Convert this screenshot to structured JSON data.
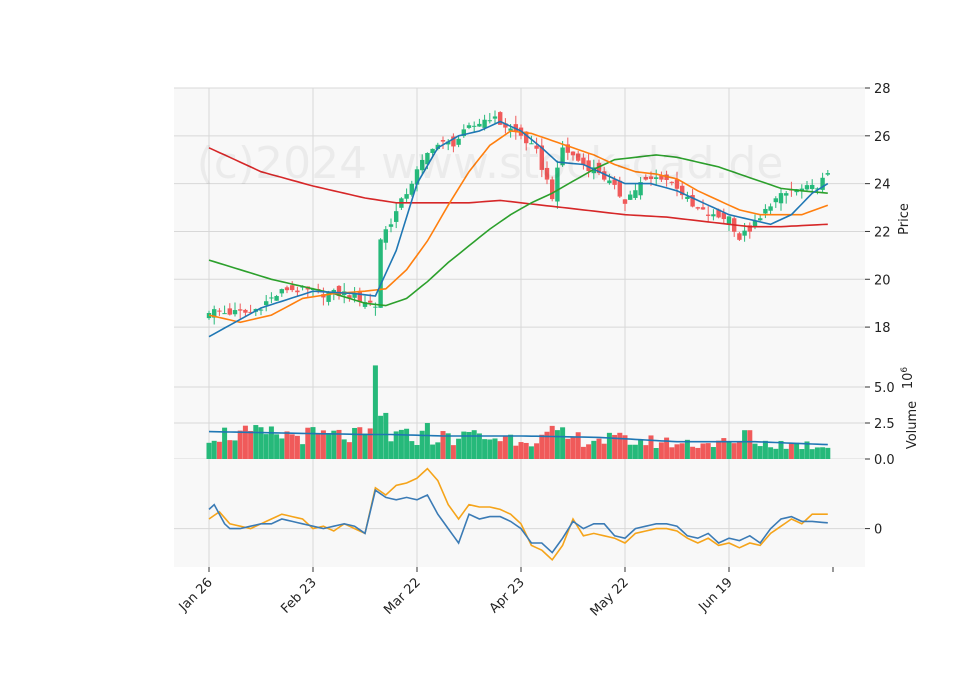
{
  "watermark": "(c)2024 www.stock-dad.de",
  "colors": {
    "up": "#26b97a",
    "down": "#f05a5a",
    "ma_fast": "#1f77b4",
    "ma_mid": "#ff7f0e",
    "ma_slow": "#2ca02c",
    "ma_long": "#d62728",
    "macd": "#3b7bb5",
    "signal": "#f5a41a",
    "volume_avg": "#1f77b4",
    "panel_bg": "#f8f8f8",
    "grid": "#d8d8d8"
  },
  "chart_data": {
    "type": "candlestick",
    "x_tick_labels": [
      "Jan 26",
      "Feb 23",
      "Mar 22",
      "Apr 23",
      "May 22",
      "Jun 19"
    ],
    "x_tick_index": [
      0,
      20,
      40,
      60,
      80,
      100
    ],
    "n_bars": 120,
    "panels": [
      {
        "name": "price",
        "ylabel": "Price",
        "ylim": [
          17.0,
          28.0
        ],
        "yticks": [
          18,
          20,
          22,
          24,
          26,
          28
        ],
        "anchors_close": [
          [
            0,
            18.7
          ],
          [
            3,
            18.6
          ],
          [
            8,
            18.6
          ],
          [
            12,
            19.2
          ],
          [
            15,
            19.6
          ],
          [
            19,
            19.5
          ],
          [
            22,
            19.4
          ],
          [
            26,
            19.4
          ],
          [
            30,
            19.1
          ],
          [
            32,
            18.9
          ],
          [
            33,
            21.7
          ],
          [
            36,
            22.8
          ],
          [
            40,
            24.5
          ],
          [
            43,
            25.6
          ],
          [
            47,
            25.7
          ],
          [
            50,
            26.3
          ],
          [
            54,
            26.8
          ],
          [
            57,
            26.4
          ],
          [
            60,
            26.0
          ],
          [
            63,
            25.3
          ],
          [
            66,
            23.5
          ],
          [
            68,
            25.5
          ],
          [
            72,
            24.8
          ],
          [
            75,
            24.5
          ],
          [
            80,
            23.3
          ],
          [
            83,
            24.0
          ],
          [
            87,
            24.3
          ],
          [
            90,
            23.9
          ],
          [
            93,
            23.0
          ],
          [
            97,
            22.6
          ],
          [
            100,
            22.6
          ],
          [
            102,
            21.7
          ],
          [
            106,
            22.5
          ],
          [
            108,
            23.2
          ],
          [
            112,
            23.7
          ],
          [
            116,
            23.8
          ],
          [
            119,
            24.3
          ]
        ],
        "ma_fast": [
          [
            0,
            17.6
          ],
          [
            10,
            18.8
          ],
          [
            20,
            19.5
          ],
          [
            28,
            19.4
          ],
          [
            32,
            19.3
          ],
          [
            36,
            21.2
          ],
          [
            40,
            24.0
          ],
          [
            44,
            25.5
          ],
          [
            48,
            26.0
          ],
          [
            52,
            26.2
          ],
          [
            56,
            26.6
          ],
          [
            60,
            26.2
          ],
          [
            64,
            25.5
          ],
          [
            67,
            24.9
          ],
          [
            72,
            24.8
          ],
          [
            76,
            24.4
          ],
          [
            80,
            24.0
          ],
          [
            85,
            24.0
          ],
          [
            90,
            23.7
          ],
          [
            95,
            23.2
          ],
          [
            100,
            22.7
          ],
          [
            104,
            22.5
          ],
          [
            108,
            22.3
          ],
          [
            112,
            22.7
          ],
          [
            116,
            23.6
          ],
          [
            119,
            24.0
          ]
        ],
        "ma_mid": [
          [
            0,
            18.5
          ],
          [
            6,
            18.2
          ],
          [
            12,
            18.5
          ],
          [
            18,
            19.2
          ],
          [
            24,
            19.4
          ],
          [
            30,
            19.5
          ],
          [
            34,
            19.6
          ],
          [
            38,
            20.4
          ],
          [
            42,
            21.6
          ],
          [
            46,
            23.1
          ],
          [
            50,
            24.5
          ],
          [
            54,
            25.6
          ],
          [
            58,
            26.2
          ],
          [
            62,
            26.1
          ],
          [
            66,
            25.8
          ],
          [
            70,
            25.5
          ],
          [
            74,
            25.2
          ],
          [
            78,
            24.8
          ],
          [
            82,
            24.5
          ],
          [
            86,
            24.4
          ],
          [
            90,
            24.2
          ],
          [
            94,
            23.7
          ],
          [
            98,
            23.3
          ],
          [
            102,
            22.9
          ],
          [
            106,
            22.7
          ],
          [
            110,
            22.7
          ],
          [
            114,
            22.7
          ],
          [
            119,
            23.1
          ]
        ],
        "ma_slow": [
          [
            0,
            20.8
          ],
          [
            6,
            20.4
          ],
          [
            12,
            20.0
          ],
          [
            18,
            19.7
          ],
          [
            24,
            19.4
          ],
          [
            30,
            19.0
          ],
          [
            34,
            18.9
          ],
          [
            38,
            19.2
          ],
          [
            42,
            19.9
          ],
          [
            46,
            20.7
          ],
          [
            50,
            21.4
          ],
          [
            54,
            22.1
          ],
          [
            58,
            22.7
          ],
          [
            62,
            23.2
          ],
          [
            66,
            23.6
          ],
          [
            70,
            24.1
          ],
          [
            74,
            24.6
          ],
          [
            78,
            25.0
          ],
          [
            82,
            25.1
          ],
          [
            86,
            25.2
          ],
          [
            90,
            25.1
          ],
          [
            94,
            24.9
          ],
          [
            98,
            24.7
          ],
          [
            102,
            24.4
          ],
          [
            106,
            24.1
          ],
          [
            110,
            23.8
          ],
          [
            114,
            23.7
          ],
          [
            119,
            23.6
          ]
        ],
        "ma_long": [
          [
            0,
            25.5
          ],
          [
            10,
            24.5
          ],
          [
            20,
            23.9
          ],
          [
            30,
            23.4
          ],
          [
            36,
            23.2
          ],
          [
            44,
            23.2
          ],
          [
            50,
            23.2
          ],
          [
            56,
            23.3
          ],
          [
            64,
            23.1
          ],
          [
            72,
            22.9
          ],
          [
            80,
            22.7
          ],
          [
            88,
            22.6
          ],
          [
            96,
            22.4
          ],
          [
            104,
            22.2
          ],
          [
            110,
            22.2
          ],
          [
            119,
            22.3
          ]
        ]
      },
      {
        "name": "volume",
        "ylabel": "Volume",
        "yunit": "10^6",
        "ylim": [
          0,
          7.5
        ],
        "yticks": [
          0.0,
          2.5,
          5.0
        ],
        "ytick_labels": [
          "0.0",
          "2.5",
          "5.0"
        ],
        "spikes": [
          [
            32,
            6.5
          ],
          [
            33,
            3.0
          ],
          [
            34,
            3.2
          ],
          [
            42,
            2.5
          ],
          [
            51,
            2.0
          ],
          [
            66,
            2.3
          ],
          [
            68,
            2.2
          ],
          [
            103,
            2.0
          ],
          [
            104,
            2.0
          ]
        ],
        "avg_level": [
          [
            0,
            1.9
          ],
          [
            30,
            1.7
          ],
          [
            35,
            1.7
          ],
          [
            45,
            1.6
          ],
          [
            60,
            1.6
          ],
          [
            75,
            1.5
          ],
          [
            90,
            1.2
          ],
          [
            105,
            1.2
          ],
          [
            119,
            1.0
          ]
        ]
      },
      {
        "name": "macd",
        "ylim": [
          -0.8,
          1.45
        ],
        "yticks": [
          0
        ],
        "ytick_labels": [
          "0"
        ],
        "macd": [
          [
            0,
            0.4
          ],
          [
            1,
            0.5
          ],
          [
            2,
            0.3
          ],
          [
            3,
            0.1
          ],
          [
            4,
            0.0
          ],
          [
            6,
            0.0
          ],
          [
            8,
            0.05
          ],
          [
            10,
            0.1
          ],
          [
            12,
            0.1
          ],
          [
            14,
            0.2
          ],
          [
            16,
            0.15
          ],
          [
            18,
            0.1
          ],
          [
            20,
            0.05
          ],
          [
            22,
            0.0
          ],
          [
            24,
            0.05
          ],
          [
            26,
            0.1
          ],
          [
            28,
            0.05
          ],
          [
            30,
            -0.1
          ],
          [
            32,
            0.8
          ],
          [
            34,
            0.65
          ],
          [
            36,
            0.6
          ],
          [
            38,
            0.65
          ],
          [
            40,
            0.6
          ],
          [
            42,
            0.7
          ],
          [
            44,
            0.3
          ],
          [
            48,
            -0.3
          ],
          [
            50,
            0.3
          ],
          [
            52,
            0.2
          ],
          [
            54,
            0.25
          ],
          [
            56,
            0.25
          ],
          [
            58,
            0.15
          ],
          [
            60,
            0.0
          ],
          [
            62,
            -0.3
          ],
          [
            64,
            -0.3
          ],
          [
            66,
            -0.5
          ],
          [
            68,
            -0.2
          ],
          [
            70,
            0.15
          ],
          [
            72,
            0.0
          ],
          [
            74,
            0.1
          ],
          [
            76,
            0.1
          ],
          [
            78,
            -0.15
          ],
          [
            80,
            -0.2
          ],
          [
            82,
            0.0
          ],
          [
            84,
            0.05
          ],
          [
            86,
            0.1
          ],
          [
            88,
            0.1
          ],
          [
            90,
            0.05
          ],
          [
            92,
            -0.15
          ],
          [
            94,
            -0.2
          ],
          [
            96,
            -0.1
          ],
          [
            98,
            -0.3
          ],
          [
            100,
            -0.2
          ],
          [
            102,
            -0.25
          ],
          [
            104,
            -0.15
          ],
          [
            106,
            -0.3
          ],
          [
            108,
            0.0
          ],
          [
            110,
            0.2
          ],
          [
            112,
            0.25
          ],
          [
            114,
            0.15
          ],
          [
            116,
            0.15
          ],
          [
            119,
            0.12
          ]
        ],
        "signal": [
          [
            0,
            0.2
          ],
          [
            2,
            0.35
          ],
          [
            4,
            0.1
          ],
          [
            6,
            0.05
          ],
          [
            8,
            0.0
          ],
          [
            10,
            0.1
          ],
          [
            12,
            0.2
          ],
          [
            14,
            0.3
          ],
          [
            16,
            0.25
          ],
          [
            18,
            0.2
          ],
          [
            20,
            0.0
          ],
          [
            22,
            0.05
          ],
          [
            24,
            -0.05
          ],
          [
            26,
            0.1
          ],
          [
            28,
            0.0
          ],
          [
            30,
            -0.1
          ],
          [
            32,
            0.85
          ],
          [
            34,
            0.7
          ],
          [
            36,
            0.9
          ],
          [
            38,
            0.95
          ],
          [
            40,
            1.05
          ],
          [
            42,
            1.25
          ],
          [
            44,
            1.0
          ],
          [
            46,
            0.5
          ],
          [
            48,
            0.2
          ],
          [
            50,
            0.5
          ],
          [
            52,
            0.45
          ],
          [
            54,
            0.45
          ],
          [
            56,
            0.4
          ],
          [
            58,
            0.3
          ],
          [
            60,
            0.1
          ],
          [
            62,
            -0.35
          ],
          [
            64,
            -0.45
          ],
          [
            66,
            -0.65
          ],
          [
            68,
            -0.35
          ],
          [
            70,
            0.2
          ],
          [
            72,
            -0.15
          ],
          [
            74,
            -0.1
          ],
          [
            76,
            -0.15
          ],
          [
            78,
            -0.2
          ],
          [
            80,
            -0.3
          ],
          [
            82,
            -0.1
          ],
          [
            84,
            -0.05
          ],
          [
            86,
            0.0
          ],
          [
            88,
            0.0
          ],
          [
            90,
            -0.05
          ],
          [
            92,
            -0.2
          ],
          [
            94,
            -0.3
          ],
          [
            96,
            -0.2
          ],
          [
            98,
            -0.35
          ],
          [
            100,
            -0.3
          ],
          [
            102,
            -0.4
          ],
          [
            104,
            -0.3
          ],
          [
            106,
            -0.35
          ],
          [
            108,
            -0.1
          ],
          [
            110,
            0.05
          ],
          [
            112,
            0.2
          ],
          [
            114,
            0.1
          ],
          [
            116,
            0.3
          ],
          [
            119,
            0.3
          ]
        ]
      }
    ]
  }
}
